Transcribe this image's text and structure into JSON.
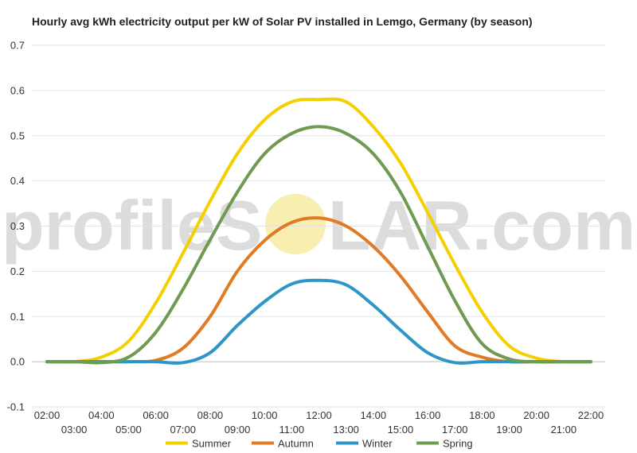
{
  "chart_data": {
    "type": "line",
    "title": "Hourly avg kWh electricity output per kW of Solar PV installed in Lemgo, Germany (by season)",
    "watermark": {
      "text_before": "profileS",
      "text_after": "LAR.com",
      "sun_color": "#f7eeb0"
    },
    "xlabel": "",
    "ylabel": "",
    "ylim": [
      -0.1,
      0.7
    ],
    "yticks": [
      "-0.1",
      "0.0",
      "0.1",
      "0.2",
      "0.3",
      "0.4",
      "0.5",
      "0.6",
      "0.7"
    ],
    "ytick_values": [
      -0.1,
      0.0,
      0.1,
      0.2,
      0.3,
      0.4,
      0.5,
      0.6,
      0.7
    ],
    "x": [
      2,
      3,
      4,
      5,
      6,
      7,
      8,
      9,
      10,
      11,
      12,
      13,
      14,
      15,
      16,
      17,
      18,
      19,
      20,
      21,
      22
    ],
    "xticks_upper": [
      "02:00",
      "04:00",
      "06:00",
      "08:00",
      "10:00",
      "12:00",
      "14:00",
      "16:00",
      "18:00",
      "20:00",
      "22:00"
    ],
    "xticks_lower": [
      "03:00",
      "05:00",
      "07:00",
      "09:00",
      "11:00",
      "13:00",
      "15:00",
      "17:00",
      "19:00",
      "21:00"
    ],
    "grid": true,
    "legend_position": "bottom",
    "series": [
      {
        "name": "Summer",
        "color": "#f5d000",
        "values": [
          0.0,
          0.0,
          0.01,
          0.045,
          0.13,
          0.24,
          0.355,
          0.46,
          0.535,
          0.575,
          0.58,
          0.575,
          0.52,
          0.44,
          0.33,
          0.215,
          0.11,
          0.035,
          0.008,
          0.0,
          0.0
        ]
      },
      {
        "name": "Autumn",
        "color": "#e07b24",
        "values": [
          0.0,
          0.0,
          0.0,
          0.0,
          0.003,
          0.03,
          0.1,
          0.2,
          0.268,
          0.308,
          0.318,
          0.3,
          0.255,
          0.19,
          0.11,
          0.035,
          0.01,
          0.0,
          0.0,
          0.0,
          0.0
        ]
      },
      {
        "name": "Winter",
        "color": "#2e96c7",
        "values": [
          0.0,
          0.0,
          0.0,
          0.0,
          0.0,
          -0.002,
          0.02,
          0.08,
          0.133,
          0.172,
          0.18,
          0.17,
          0.125,
          0.07,
          0.02,
          -0.002,
          0.0,
          0.0,
          0.0,
          0.0,
          0.0
        ]
      },
      {
        "name": "Spring",
        "color": "#6e9a52",
        "values": [
          0.0,
          0.0,
          -0.002,
          0.01,
          0.065,
          0.16,
          0.27,
          0.375,
          0.46,
          0.505,
          0.52,
          0.505,
          0.46,
          0.375,
          0.255,
          0.135,
          0.04,
          0.006,
          0.0,
          0.0,
          0.0
        ]
      }
    ]
  }
}
